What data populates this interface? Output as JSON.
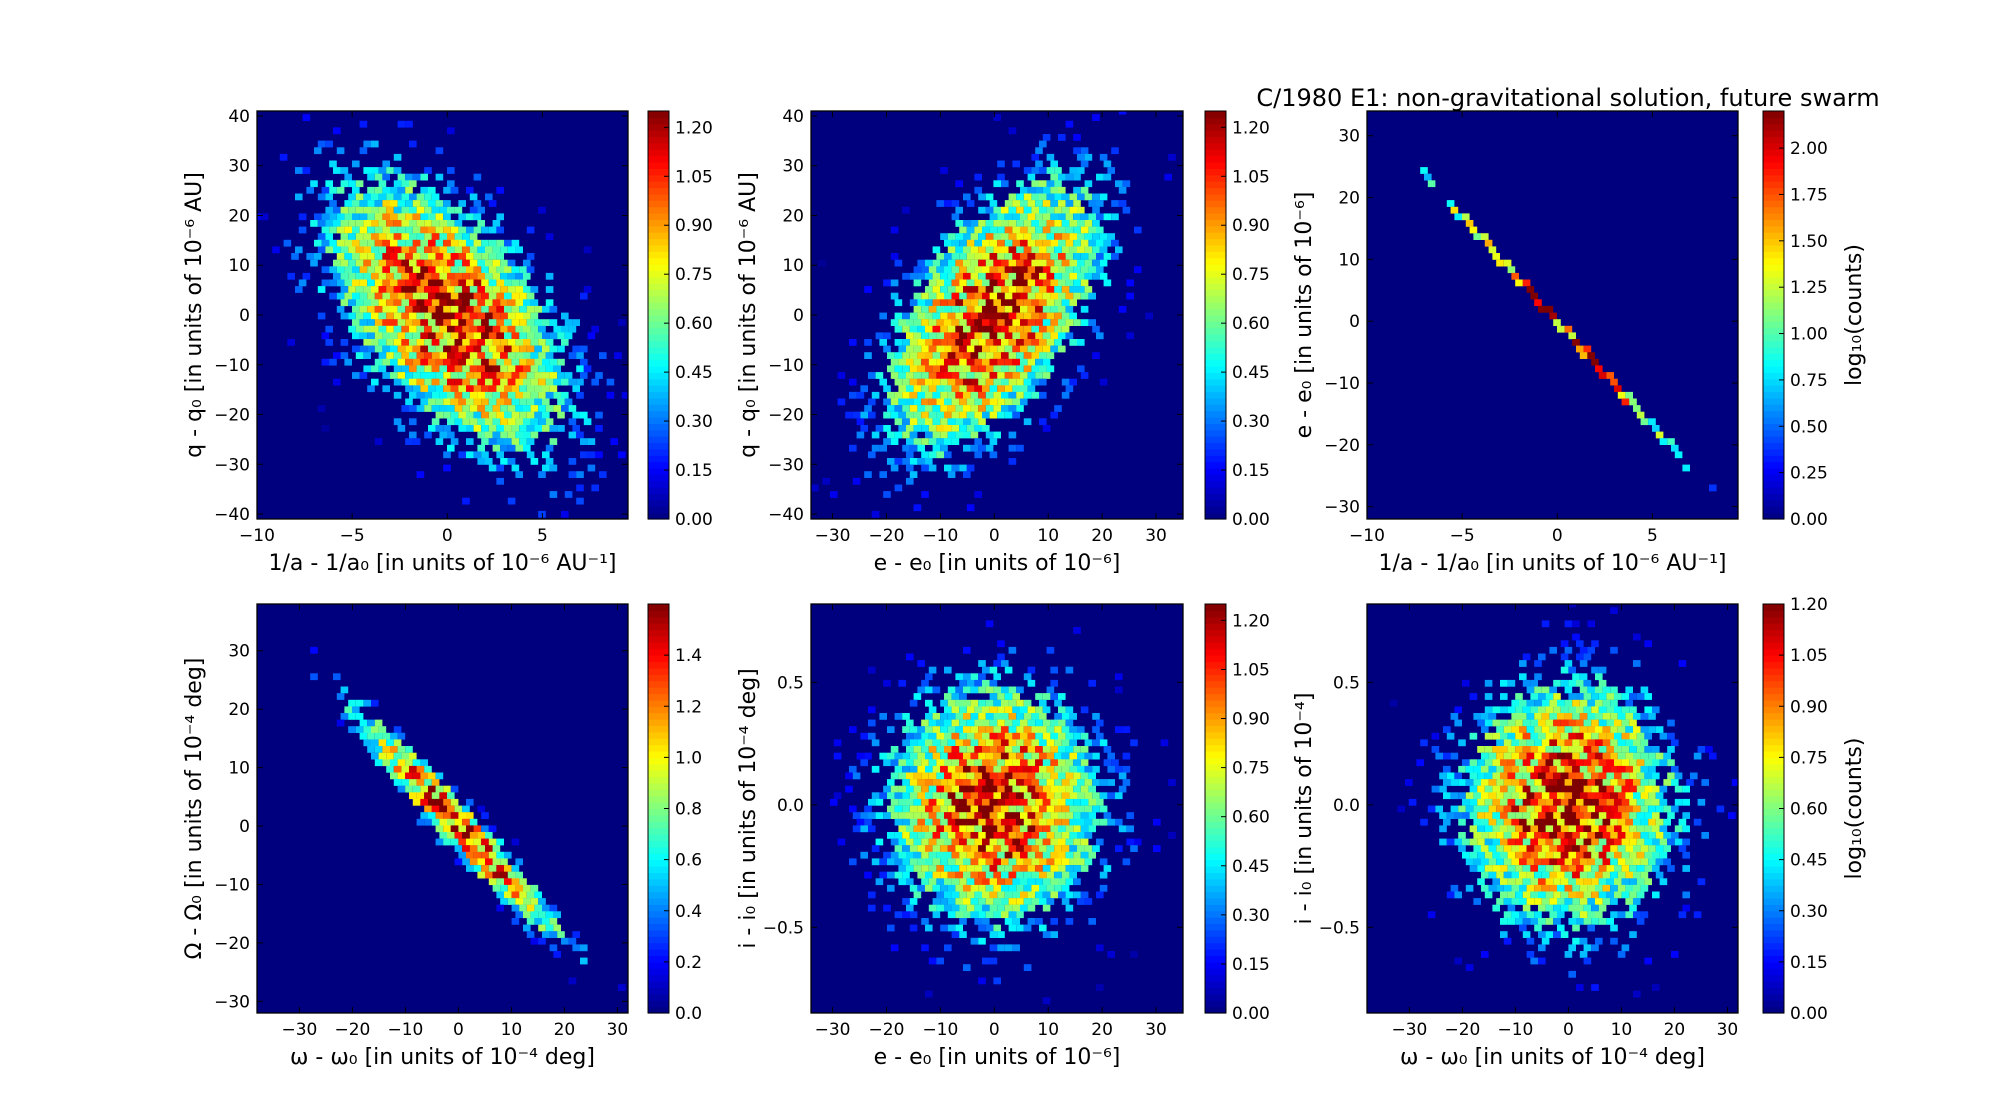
{
  "suptitle": "C/1980 E1:  non-gravitational solution, future swarm",
  "chart_data": [
    {
      "type": "heatmap",
      "xlabel": "1/a - 1/a₀ [in units of 10⁻⁶ AU⁻¹]",
      "ylabel": "q - q₀ [in units of 10⁻⁶ AU]",
      "xlim": [
        -10,
        9.5
      ],
      "ylim": [
        -41,
        41
      ],
      "xticks": [
        -10,
        -5,
        0,
        5
      ],
      "yticks": [
        -40,
        -30,
        -20,
        -10,
        0,
        10,
        20,
        30,
        40
      ],
      "colorbar": {
        "min": 0,
        "max": 1.25,
        "ticks": [
          "0.00",
          "0.15",
          "0.30",
          "0.45",
          "0.60",
          "0.75",
          "0.90",
          "1.05",
          "1.20"
        ],
        "label": ""
      },
      "distribution": {
        "mean": [
          0,
          0
        ],
        "sd": [
          3.2,
          14
        ],
        "corr": -0.55,
        "peak": 1.2
      }
    },
    {
      "type": "heatmap",
      "xlabel": "e - e₀ [in units of 10⁻⁶]",
      "ylabel": "q - q₀ [in units of 10⁻⁶ AU]",
      "xlim": [
        -34,
        35
      ],
      "ylim": [
        -41,
        41
      ],
      "xticks": [
        -30,
        -20,
        -10,
        0,
        10,
        20,
        30
      ],
      "yticks": [
        -40,
        -30,
        -20,
        -10,
        0,
        10,
        20,
        30,
        40
      ],
      "colorbar": {
        "min": 0,
        "max": 1.25,
        "ticks": [
          "0.00",
          "0.15",
          "0.30",
          "0.45",
          "0.60",
          "0.75",
          "0.90",
          "1.05",
          "1.20"
        ],
        "label": ""
      },
      "distribution": {
        "mean": [
          0,
          0
        ],
        "sd": [
          10,
          14
        ],
        "corr": 0.55,
        "peak": 1.2
      }
    },
    {
      "type": "heatmap",
      "xlabel": "1/a - 1/a₀ [in units of 10⁻⁶ AU⁻¹]",
      "ylabel": "e - e₀ [in units of 10⁻⁶]",
      "xlim": [
        -10,
        9.5
      ],
      "ylim": [
        -32,
        34
      ],
      "xticks": [
        -10,
        -5,
        0,
        5
      ],
      "yticks": [
        -30,
        -20,
        -10,
        0,
        10,
        20,
        30
      ],
      "colorbar": {
        "min": 0,
        "max": 2.2,
        "ticks": [
          "0.00",
          "0.25",
          "0.50",
          "0.75",
          "1.00",
          "1.25",
          "1.50",
          "1.75",
          "2.00"
        ],
        "label": "log₁₀(counts)"
      },
      "distribution": {
        "line": {
          "slope": -3.4,
          "from": -9.8,
          "to": 9.0
        },
        "sd_along": 3.2,
        "peak": 2.2
      }
    },
    {
      "type": "heatmap",
      "xlabel": "ω - ω₀ [in units of 10⁻⁴ deg]",
      "ylabel": "Ω - Ω₀ [in units of 10⁻⁴ deg]",
      "xlim": [
        -38,
        32
      ],
      "ylim": [
        -32,
        38
      ],
      "xticks": [
        -30,
        -20,
        -10,
        0,
        10,
        20,
        30
      ],
      "yticks": [
        -30,
        -20,
        -10,
        0,
        10,
        20,
        30
      ],
      "colorbar": {
        "min": 0,
        "max": 1.6,
        "ticks": [
          "0.0",
          "0.2",
          "0.4",
          "0.6",
          "0.8",
          "1.0",
          "1.2",
          "1.4"
        ],
        "label": ""
      },
      "distribution": {
        "mean": [
          0,
          0
        ],
        "sd": [
          10,
          10
        ],
        "corr": -0.97,
        "peak": 1.55
      }
    },
    {
      "type": "heatmap",
      "xlabel": "e - e₀ [in units of 10⁻⁶]",
      "ylabel": "i - i₀ [in units of 10⁻⁴ deg]",
      "xlim": [
        -34,
        35
      ],
      "ylim": [
        -0.85,
        0.82
      ],
      "xticks": [
        -30,
        -20,
        -10,
        0,
        10,
        20,
        30
      ],
      "yticks": [
        -0.5,
        0.0,
        0.5
      ],
      "ytickformat": 1,
      "colorbar": {
        "min": 0,
        "max": 1.25,
        "ticks": [
          "0.00",
          "0.15",
          "0.30",
          "0.45",
          "0.60",
          "0.75",
          "0.90",
          "1.05",
          "1.20"
        ],
        "label": ""
      },
      "distribution": {
        "mean": [
          0,
          0
        ],
        "sd": [
          10,
          0.25
        ],
        "corr": 0.0,
        "peak": 1.2
      }
    },
    {
      "type": "heatmap",
      "xlabel": "ω - ω₀ [in units of 10⁻⁴ deg]",
      "ylabel": "i - i₀ [in units of 10⁻⁴]",
      "xlim": [
        -38,
        32
      ],
      "ylim": [
        -0.85,
        0.82
      ],
      "xticks": [
        -30,
        -20,
        -10,
        0,
        10,
        20,
        30
      ],
      "yticks": [
        -0.5,
        0.0,
        0.5
      ],
      "ytickformat": 1,
      "colorbar": {
        "min": 0,
        "max": 1.2,
        "ticks": [
          "0.00",
          "0.15",
          "0.30",
          "0.45",
          "0.60",
          "0.75",
          "0.90",
          "1.05",
          "1.20"
        ],
        "label": "log₁₀(counts)"
      },
      "distribution": {
        "mean": [
          0,
          0
        ],
        "sd": [
          10,
          0.25
        ],
        "corr": 0.0,
        "peak": 1.2
      }
    }
  ]
}
